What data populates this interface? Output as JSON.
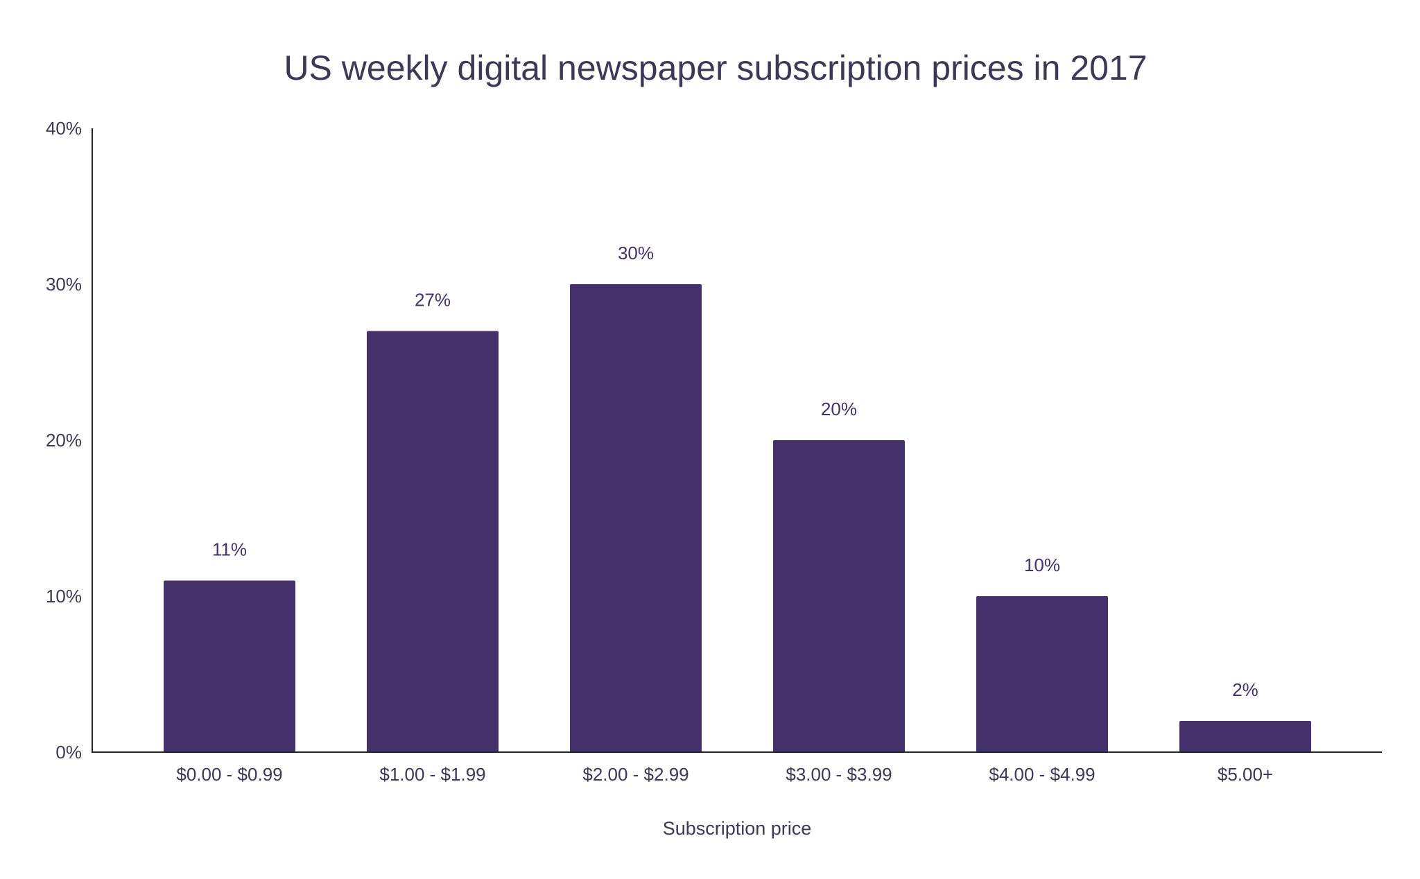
{
  "chart_data": {
    "type": "bar",
    "title": "US weekly digital newspaper subscription prices in 2017",
    "xlabel": "Subscription price",
    "ylabel": "",
    "categories": [
      "$0.00 - $0.99",
      "$1.00 - $1.99",
      "$2.00 - $2.99",
      "$3.00 - $3.99",
      "$4.00 - $4.99",
      "$5.00+"
    ],
    "values": [
      11,
      27,
      30,
      20,
      10,
      2
    ],
    "data_labels": [
      "11%",
      "27%",
      "30%",
      "20%",
      "10%",
      "2%"
    ],
    "ylim": [
      0,
      40
    ],
    "yticks": [
      0,
      10,
      20,
      30,
      40
    ],
    "ytick_labels": [
      "0%",
      "10%",
      "20%",
      "30%",
      "40%"
    ],
    "grid": false,
    "legend": "none",
    "colors": {
      "bar": "#44306a",
      "text": "#3b3954",
      "axis": "#222222"
    }
  }
}
